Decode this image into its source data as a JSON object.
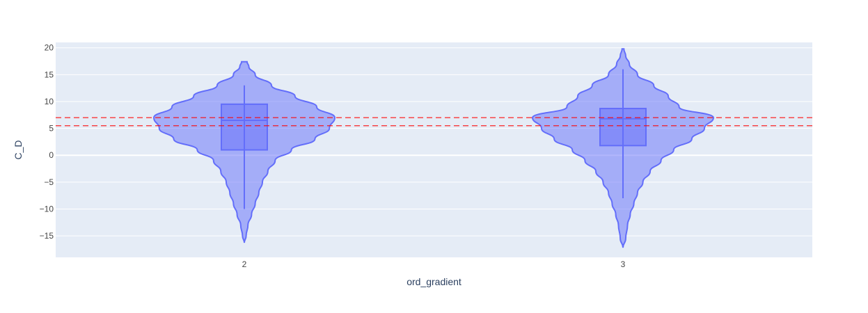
{
  "chart_data": {
    "type": "violin",
    "xlabel": "ord_gradient",
    "ylabel": "C_D",
    "categories": [
      "2",
      "3"
    ],
    "ylim": [
      -19,
      21
    ],
    "yticks": [
      -15,
      -10,
      -5,
      0,
      5,
      10,
      15,
      20
    ],
    "grid": true,
    "legend": "none",
    "colors": {
      "plot_bg": "#e5ecf6",
      "violin_fill": "#636efa",
      "violin_line": "#636efa",
      "ref_line": "#ff0000",
      "grid": "#ffffff"
    },
    "reference_lines": [
      7.0,
      5.5
    ],
    "series": [
      {
        "category": "2",
        "box": {
          "q1": 1.0,
          "median": 6.5,
          "q3": 9.5,
          "whisker_low": -10.0,
          "whisker_high": 13.0
        },
        "range": [
          -16.3,
          17.4
        ],
        "density": [
          [
            -16.3,
            0.0
          ],
          [
            -15.0,
            0.02
          ],
          [
            -13.0,
            0.04
          ],
          [
            -11.0,
            0.08
          ],
          [
            -9.0,
            0.12
          ],
          [
            -7.0,
            0.16
          ],
          [
            -5.0,
            0.2
          ],
          [
            -3.0,
            0.26
          ],
          [
            -1.0,
            0.34
          ],
          [
            1.0,
            0.52
          ],
          [
            3.0,
            0.78
          ],
          [
            5.0,
            0.94
          ],
          [
            7.0,
            1.0
          ],
          [
            9.0,
            0.8
          ],
          [
            11.0,
            0.56
          ],
          [
            13.0,
            0.3
          ],
          [
            15.0,
            0.12
          ],
          [
            16.5,
            0.05
          ],
          [
            17.4,
            0.03
          ]
        ]
      },
      {
        "category": "3",
        "box": {
          "q1": 1.8,
          "median": 6.8,
          "q3": 8.7,
          "whisker_low": -8.0,
          "whisker_high": 16.0
        },
        "range": [
          -17.2,
          19.8
        ],
        "density": [
          [
            -17.2,
            0.0
          ],
          [
            -15.5,
            0.03
          ],
          [
            -13.0,
            0.05
          ],
          [
            -11.0,
            0.08
          ],
          [
            -9.0,
            0.12
          ],
          [
            -7.0,
            0.16
          ],
          [
            -5.0,
            0.22
          ],
          [
            -3.0,
            0.3
          ],
          [
            -1.0,
            0.42
          ],
          [
            1.0,
            0.56
          ],
          [
            3.0,
            0.76
          ],
          [
            5.0,
            0.9
          ],
          [
            7.0,
            1.0
          ],
          [
            9.0,
            0.62
          ],
          [
            11.0,
            0.5
          ],
          [
            13.0,
            0.34
          ],
          [
            15.0,
            0.16
          ],
          [
            17.0,
            0.07
          ],
          [
            18.5,
            0.03
          ],
          [
            19.8,
            0.01
          ]
        ]
      }
    ]
  }
}
